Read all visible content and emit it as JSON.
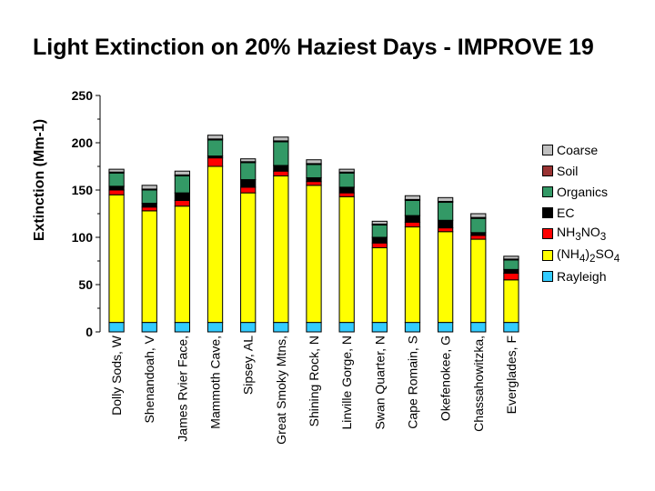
{
  "title": "Light Extinction on 20% Haziest Days - IMPROVE 19",
  "chart_data": {
    "type": "bar",
    "stacked": true,
    "title": "Light Extinction on 20% Haziest Days - IMPROVE 19",
    "ylabel": "Extinction (Mm-1)",
    "xlabel": "",
    "ylim": [
      0,
      250
    ],
    "yticks": [
      "0",
      "50",
      "100",
      "150",
      "200",
      "250"
    ],
    "categories": [
      "Dolly Sods, W",
      "Shenandoah, V",
      "James Rvier Face, ",
      "Mammoth Cave, ",
      "Sipsey, AL",
      "Great Smoky Mtns,",
      "Shining Rock, N",
      "Linville Gorge, N",
      "Swan Quarter, N",
      "Cape Romain, S",
      "Okefenokee, G",
      "Chassahowitzka, ",
      "Everglades, F"
    ],
    "series": [
      {
        "name": "Rayleigh",
        "color": "#33ccff",
        "values": [
          10,
          10,
          10,
          10,
          10,
          10,
          10,
          10,
          10,
          10,
          10,
          10,
          10
        ]
      },
      {
        "name": "(NH4)2SO4",
        "color": "#ffff00",
        "values": [
          135,
          118,
          123,
          165,
          137,
          155,
          145,
          133,
          79,
          101,
          96,
          88,
          45
        ]
      },
      {
        "name": "NH3NO3",
        "color": "#ff0000",
        "values": [
          5,
          4,
          6,
          9,
          6,
          5,
          4,
          4,
          5,
          5,
          4,
          4,
          7
        ]
      },
      {
        "name": "EC",
        "color": "#000000",
        "values": [
          4,
          4,
          8,
          2,
          8,
          6,
          4,
          6,
          6,
          7,
          8,
          3,
          4
        ]
      },
      {
        "name": "Organics",
        "color": "#339966",
        "values": [
          14,
          14,
          18,
          17,
          18,
          25,
          14,
          15,
          13,
          16,
          19,
          15,
          10
        ]
      },
      {
        "name": "Soil",
        "color": "#993333",
        "values": [
          1,
          1,
          1,
          1,
          1,
          1,
          1,
          1,
          1,
          1,
          1,
          1,
          1
        ]
      },
      {
        "name": "Coarse",
        "color": "#c0c0c0",
        "values": [
          3,
          4,
          4,
          4,
          3,
          4,
          4,
          3,
          3,
          4,
          4,
          4,
          3
        ]
      }
    ],
    "legend": {
      "placement": "right",
      "entries": [
        {
          "key": "coarse",
          "label": "Coarse",
          "color": "#c0c0c0"
        },
        {
          "key": "soil",
          "label": "Soil",
          "color": "#993333"
        },
        {
          "key": "organics",
          "label": "Organics",
          "color": "#339966"
        },
        {
          "key": "ec",
          "label": "EC",
          "color": "#000000"
        },
        {
          "key": "nh3no3",
          "label": "NH3NO3",
          "color": "#ff0000"
        },
        {
          "key": "nh42so4",
          "label": "(NH4)2SO4",
          "color": "#ffff00"
        },
        {
          "key": "rayleigh",
          "label": "Rayleigh",
          "color": "#33ccff"
        }
      ]
    }
  }
}
